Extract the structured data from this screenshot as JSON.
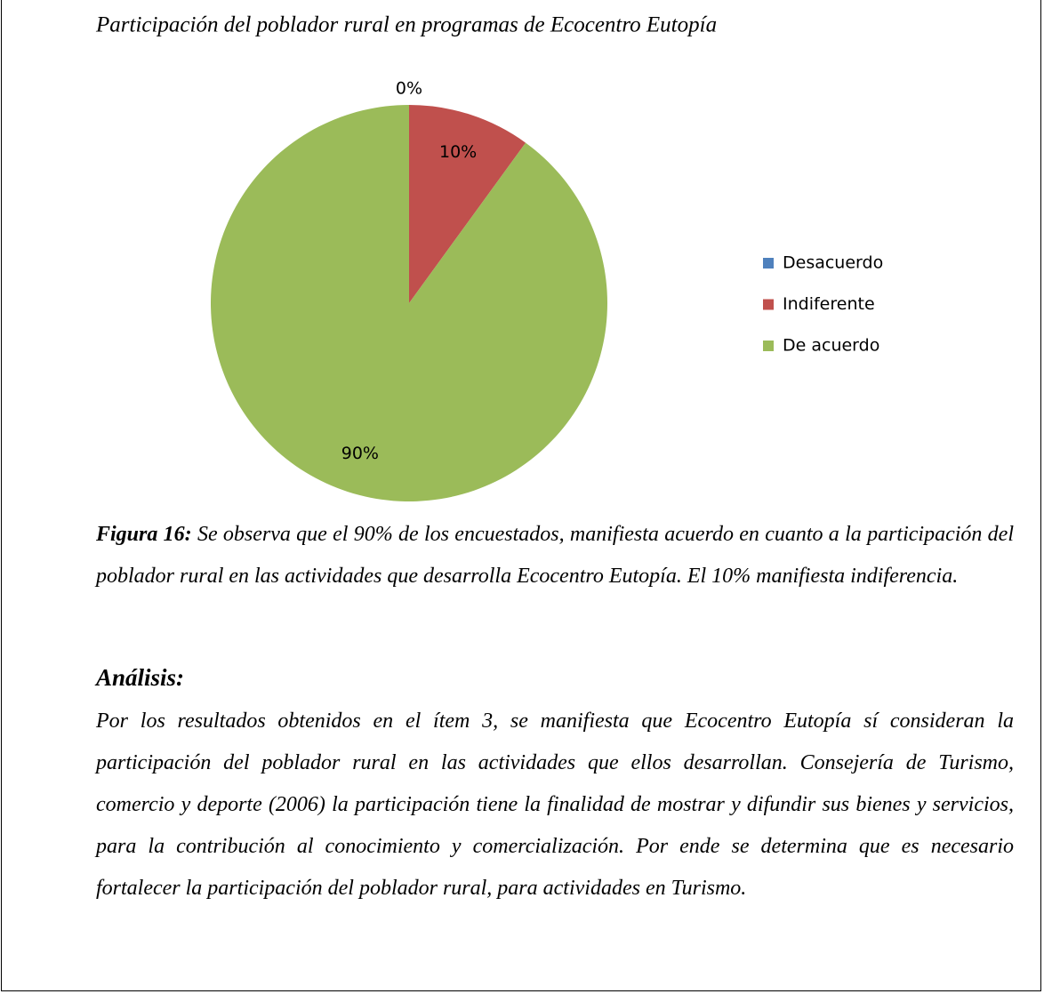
{
  "chart_data": {
    "type": "pie",
    "title": "Participación del poblador rural en  programas de Ecocentro Eutopía",
    "categories": [
      "Desacuerdo",
      "Indiferente",
      "De acuerdo"
    ],
    "values": [
      0,
      10,
      90
    ],
    "value_labels": [
      "0%",
      "10%",
      "90%"
    ],
    "colors": [
      "#4f81bd",
      "#c0504d",
      "#9bbb59"
    ],
    "legend": "right"
  },
  "caption": {
    "label": "Figura 16:",
    "text": " Se observa que el 90% de los encuestados, manifiesta acuerdo en cuanto a la participación del poblador rural en las actividades que desarrolla Ecocentro Eutopía. El 10% manifiesta indiferencia."
  },
  "analysis": {
    "heading": "Análisis:",
    "text": "Por los resultados obtenidos en el ítem 3, se manifiesta que Ecocentro Eutopía sí consideran la participación del poblador rural en las actividades que ellos desarrollan. Consejería de Turismo, comercio y deporte (2006) la participación tiene la finalidad de mostrar y difundir sus bienes y servicios, para la contribución al conocimiento y comercialización.   Por ende se determina que es necesario fortalecer la participación del poblador rural, para actividades en Turismo."
  }
}
